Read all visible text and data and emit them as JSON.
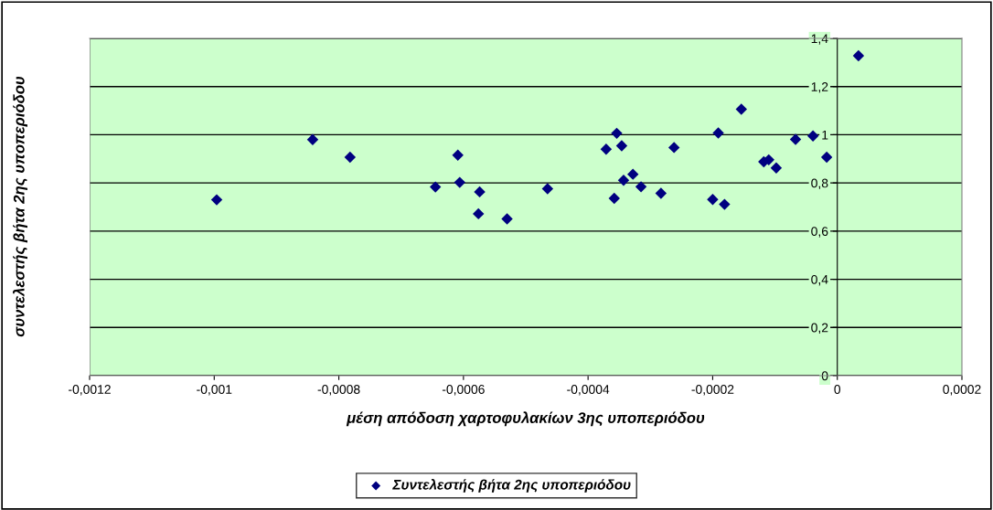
{
  "chart_data": {
    "type": "scatter",
    "xlabel": "μέση απόδοση χαρτοφυλακίων 3ης υποπεριόδου",
    "ylabel": "συντελεστής βήτα 2ης υποπεριόδου",
    "series": [
      {
        "name": "Συντελεστής βήτα 2ης υποπεριόδου",
        "color": "#000080",
        "x": [
          -0.000996,
          -0.000842,
          -0.000782,
          -0.000609,
          -0.000645,
          -0.000606,
          -0.000574,
          -0.000576,
          -0.00053,
          -0.000465,
          -0.000371,
          -0.000354,
          -0.000346,
          -0.000343,
          -0.000358,
          -0.000328,
          -0.000315,
          -0.000262,
          -0.000283,
          -0.0002,
          -0.000191,
          -0.000181,
          -0.000154,
          -0.000118,
          -0.00011,
          -9.8e-05,
          -6.7e-05,
          -3.9e-05,
          -1.7e-05,
          3.4e-05
        ],
        "values": [
          0.73,
          0.98,
          0.907,
          0.915,
          0.783,
          0.802,
          0.763,
          0.672,
          0.651,
          0.776,
          0.94,
          1.006,
          0.954,
          0.811,
          0.736,
          0.836,
          0.784,
          0.947,
          0.757,
          0.731,
          1.007,
          0.711,
          1.106,
          0.888,
          0.896,
          0.862,
          0.981,
          0.995,
          0.907,
          1.328
        ]
      }
    ],
    "xlim": [
      -0.0012,
      0.0002
    ],
    "xticks": [
      {
        "value": -0.0012,
        "label": "-0,0012"
      },
      {
        "value": -0.001,
        "label": "-0,001"
      },
      {
        "value": -0.0008,
        "label": "-0,0008"
      },
      {
        "value": -0.0006,
        "label": "-0,0006"
      },
      {
        "value": -0.0004,
        "label": "-0,0004"
      },
      {
        "value": -0.0002,
        "label": "-0,0002"
      },
      0,
      {
        "value": 0.0002,
        "label": "0,0002"
      }
    ],
    "ylim": [
      0,
      1.4
    ],
    "yticks": [
      0,
      {
        "value": 0.2,
        "label": "0,2"
      },
      {
        "value": 0.4,
        "label": "0,4"
      },
      {
        "value": 0.6,
        "label": "0,6"
      },
      {
        "value": 0.8,
        "label": "0,8"
      },
      1,
      {
        "value": 1.2,
        "label": "1,2"
      },
      {
        "value": 1.4,
        "label": "1,4"
      }
    ],
    "grid": "y",
    "legend": "bottom",
    "marker": "diamond"
  }
}
